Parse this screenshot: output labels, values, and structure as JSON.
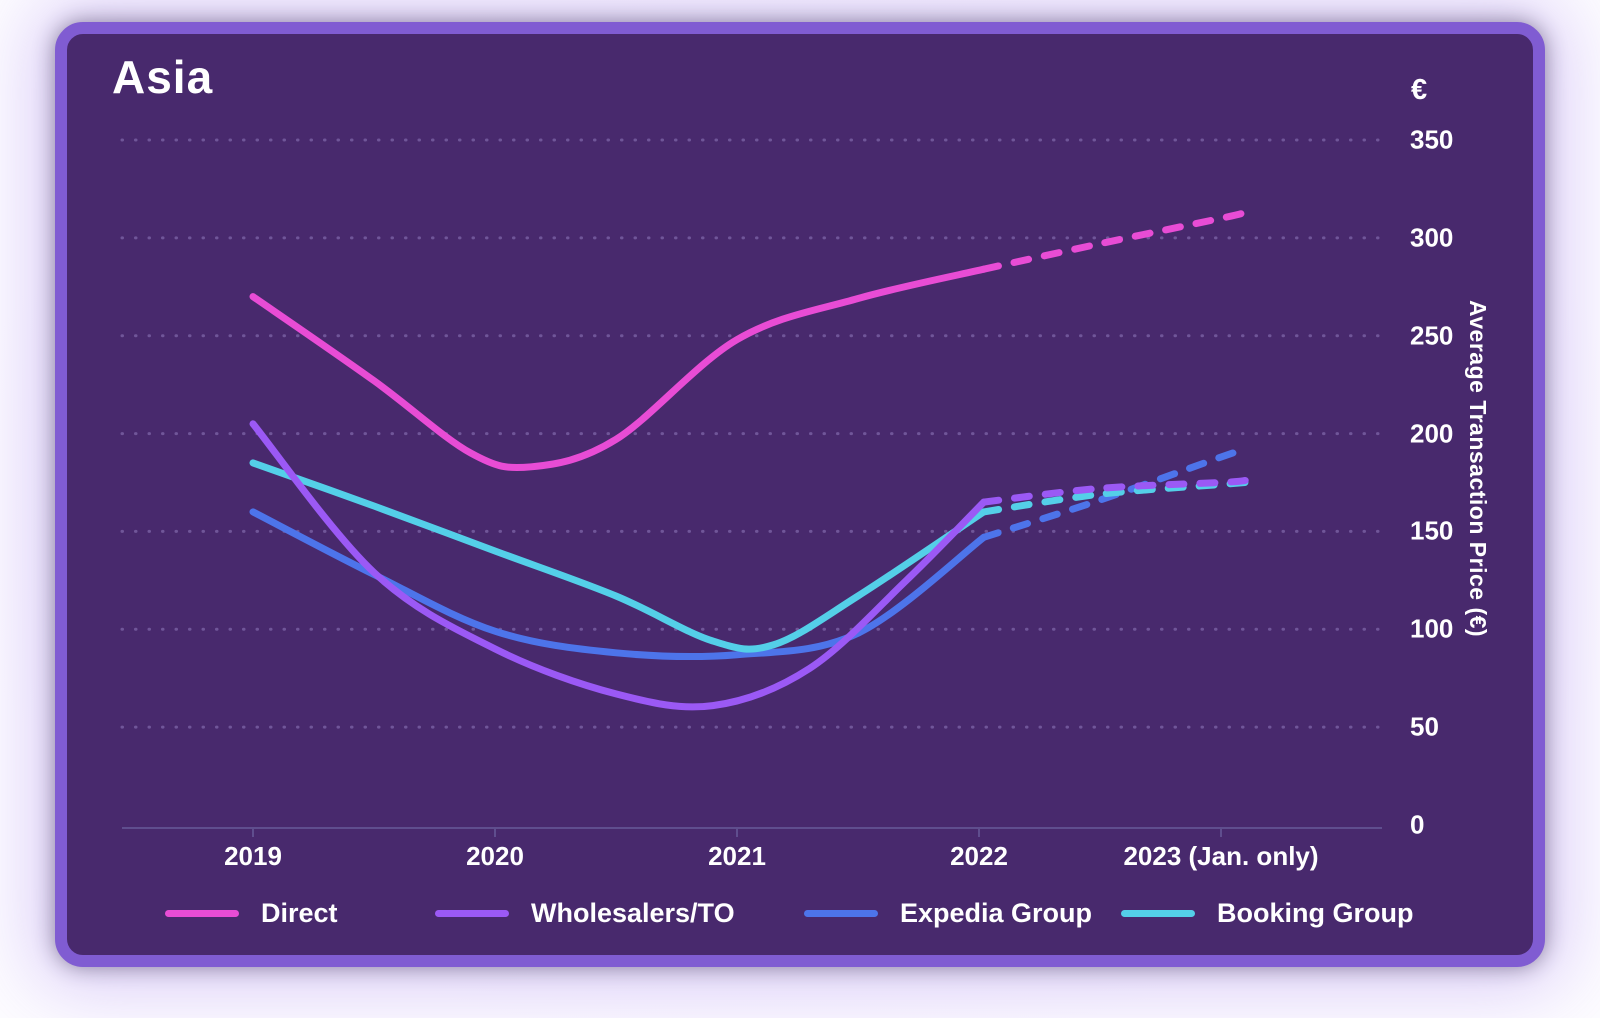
{
  "title": "Asia",
  "y_axis": {
    "currency_symbol": "€",
    "title": "Average Transaction Price (€)",
    "ticks": [
      350,
      300,
      250,
      200,
      150,
      100,
      50,
      0
    ]
  },
  "x_axis": {
    "labels": [
      "2019",
      "2020",
      "2021",
      "2022",
      "2023 (Jan. only)"
    ]
  },
  "legend": [
    {
      "label": "Direct",
      "color": "#e84cd5"
    },
    {
      "label": "Wholesalers/TO",
      "color": "#9b59f5"
    },
    {
      "label": "Expedia Group",
      "color": "#4d74ea"
    },
    {
      "label": "Booking Group",
      "color": "#54cfe8"
    }
  ],
  "colors": {
    "card_background": "#48296d",
    "card_border": "#805cd2",
    "text": "#ffffff",
    "gridline_dots": "#a996d6",
    "axis_line": "#5f4e8e"
  },
  "chart_data": {
    "type": "line",
    "title": "Asia",
    "ylabel": "Average Transaction Price (€)",
    "ylim": [
      0,
      350
    ],
    "grid": "dotted horizontal lines every 50",
    "legend_position": "bottom",
    "x_categories": [
      "2019",
      "2020",
      "2021",
      "2022",
      "2023 (Jan. only)"
    ],
    "dashed_forecast_from": "2022",
    "series": [
      {
        "name": "Direct",
        "color": "#e84cd5",
        "values_by_year": {
          "2019": 270,
          "2020": 188,
          "2021": 248,
          "2022": 283,
          "2023 (Jan. only)": 310
        },
        "curve_points_solid": [
          [
            0,
            270
          ],
          [
            0.5,
            227
          ],
          [
            0.9,
            190
          ],
          [
            1.15,
            183
          ],
          [
            1.5,
            197
          ],
          [
            2,
            248
          ],
          [
            2.5,
            269
          ],
          [
            3.02,
            284
          ]
        ],
        "curve_points_dashed": [
          [
            3.02,
            284
          ],
          [
            3.5,
            297
          ],
          [
            4,
            310
          ],
          [
            4.1,
            313
          ]
        ]
      },
      {
        "name": "Expedia Group",
        "color": "#4d74ea",
        "values_by_year": {
          "2019": 160,
          "2020": 99,
          "2021": 87,
          "2022": 145,
          "2023 (Jan. only)": 188
        },
        "curve_points_solid": [
          [
            0,
            160
          ],
          [
            0.5,
            128
          ],
          [
            1,
            99
          ],
          [
            1.5,
            88
          ],
          [
            2,
            87
          ],
          [
            2.5,
            98
          ],
          [
            3.02,
            147
          ]
        ],
        "curve_points_dashed": [
          [
            3.02,
            147
          ],
          [
            3.5,
            166
          ],
          [
            4,
            188
          ],
          [
            4.1,
            192
          ]
        ]
      },
      {
        "name": "Booking Group",
        "color": "#54cfe8",
        "values_by_year": {
          "2019": 185,
          "2020": 140,
          "2021": 93,
          "2022": 158,
          "2023 (Jan. only)": 174
        },
        "curve_points_solid": [
          [
            0,
            185
          ],
          [
            0.5,
            163
          ],
          [
            1,
            140
          ],
          [
            1.5,
            117
          ],
          [
            1.9,
            94
          ],
          [
            2.15,
            92
          ],
          [
            2.5,
            117
          ],
          [
            3.02,
            160
          ]
        ],
        "curve_points_dashed": [
          [
            3.02,
            160
          ],
          [
            3.5,
            169
          ],
          [
            4,
            174
          ],
          [
            4.1,
            175
          ]
        ]
      },
      {
        "name": "Wholesalers/TO",
        "color": "#9b59f5",
        "values_by_year": {
          "2019": 205,
          "2020": 90,
          "2021": 62,
          "2022": 164,
          "2023 (Jan. only)": 175
        },
        "curve_points_solid": [
          [
            0,
            205
          ],
          [
            0.5,
            129
          ],
          [
            1,
            90
          ],
          [
            1.5,
            67
          ],
          [
            1.9,
            61
          ],
          [
            2.3,
            80
          ],
          [
            2.7,
            125
          ],
          [
            3.02,
            165
          ]
        ],
        "curve_points_dashed": [
          [
            3.02,
            165
          ],
          [
            3.5,
            172
          ],
          [
            4,
            175
          ],
          [
            4.1,
            176
          ]
        ]
      }
    ]
  }
}
